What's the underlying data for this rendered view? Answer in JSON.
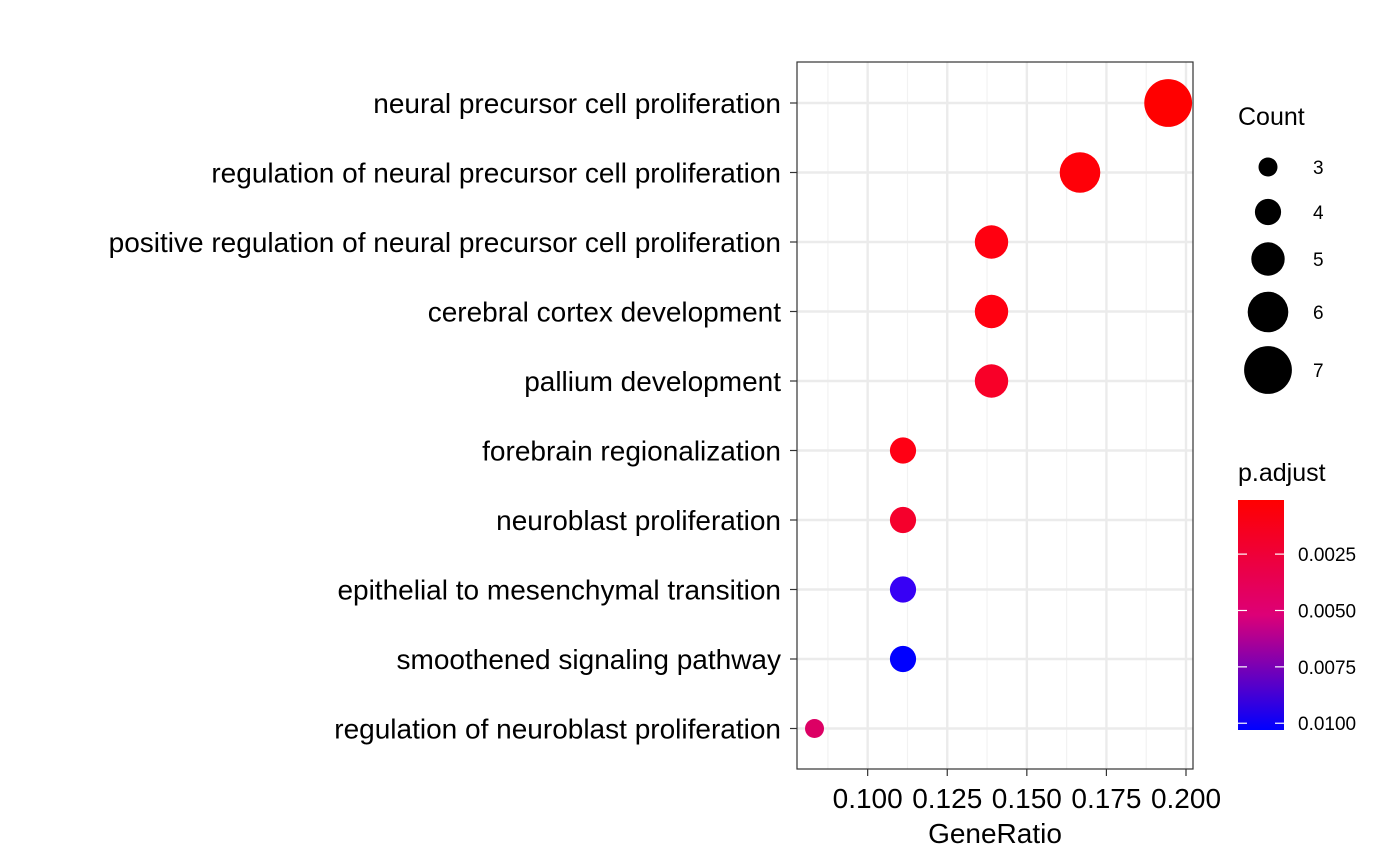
{
  "chart_data": {
    "type": "scatter",
    "title": "",
    "xlabel": "GeneRatio",
    "ylabel": "",
    "xlim": [
      0.0778,
      0.2022
    ],
    "xticks": [
      0.1,
      0.125,
      0.15,
      0.175,
      0.2
    ],
    "xtick_labels": [
      "0.100",
      "0.125",
      "0.150",
      "0.175",
      "0.200"
    ],
    "grid": true,
    "legend_position": "right",
    "categories": [
      "neural precursor cell proliferation",
      "regulation of neural precursor cell proliferation",
      "positive regulation of neural precursor cell proliferation",
      "cerebral cortex development",
      "pallium development",
      "forebrain regionalization",
      "neuroblast proliferation",
      "epithelial to mesenchymal transition",
      "smoothened signaling pathway",
      "regulation of neuroblast proliferation"
    ],
    "points": [
      {
        "term": "neural precursor cell proliferation",
        "gene_ratio": 0.1944,
        "count": 7,
        "p_adjust": 0.0001,
        "color": "#FF0000"
      },
      {
        "term": "regulation of neural precursor cell proliferation",
        "gene_ratio": 0.1667,
        "count": 6,
        "p_adjust": 0.0003,
        "color": "#FF0008"
      },
      {
        "term": "positive regulation of neural precursor cell proliferation",
        "gene_ratio": 0.1389,
        "count": 5,
        "p_adjust": 0.0005,
        "color": "#FF0010"
      },
      {
        "term": "cerebral cortex development",
        "gene_ratio": 0.1389,
        "count": 5,
        "p_adjust": 0.0005,
        "color": "#FF0010"
      },
      {
        "term": "pallium development",
        "gene_ratio": 0.1389,
        "count": 5,
        "p_adjust": 0.0011,
        "color": "#F80028"
      },
      {
        "term": "forebrain regionalization",
        "gene_ratio": 0.1111,
        "count": 4,
        "p_adjust": 0.0006,
        "color": "#FF0014"
      },
      {
        "term": "neuroblast proliferation",
        "gene_ratio": 0.1111,
        "count": 4,
        "p_adjust": 0.0012,
        "color": "#F5002C"
      },
      {
        "term": "epithelial to mesenchymal transition",
        "gene_ratio": 0.1111,
        "count": 4,
        "p_adjust": 0.0096,
        "color": "#3700F5"
      },
      {
        "term": "smoothened signaling pathway",
        "gene_ratio": 0.1111,
        "count": 4,
        "p_adjust": 0.0103,
        "color": "#0000FF"
      },
      {
        "term": "regulation of neuroblast proliferation",
        "gene_ratio": 0.0833,
        "count": 3,
        "p_adjust": 0.0035,
        "color": "#DC0064"
      }
    ],
    "size_legend": {
      "title": "Count",
      "values": [
        3,
        4,
        5,
        6,
        7
      ],
      "labels": [
        "3",
        "4",
        "5",
        "6",
        "7"
      ]
    },
    "color_legend": {
      "title": "p.adjust",
      "min": 0.0001,
      "max": 0.0103,
      "low_color": "#FF0000",
      "high_color": "#0000FF",
      "ticks": [
        0.0025,
        0.005,
        0.0075,
        0.01
      ],
      "labels": [
        "0.0025",
        "0.0050",
        "0.0075",
        "0.0100"
      ]
    }
  }
}
